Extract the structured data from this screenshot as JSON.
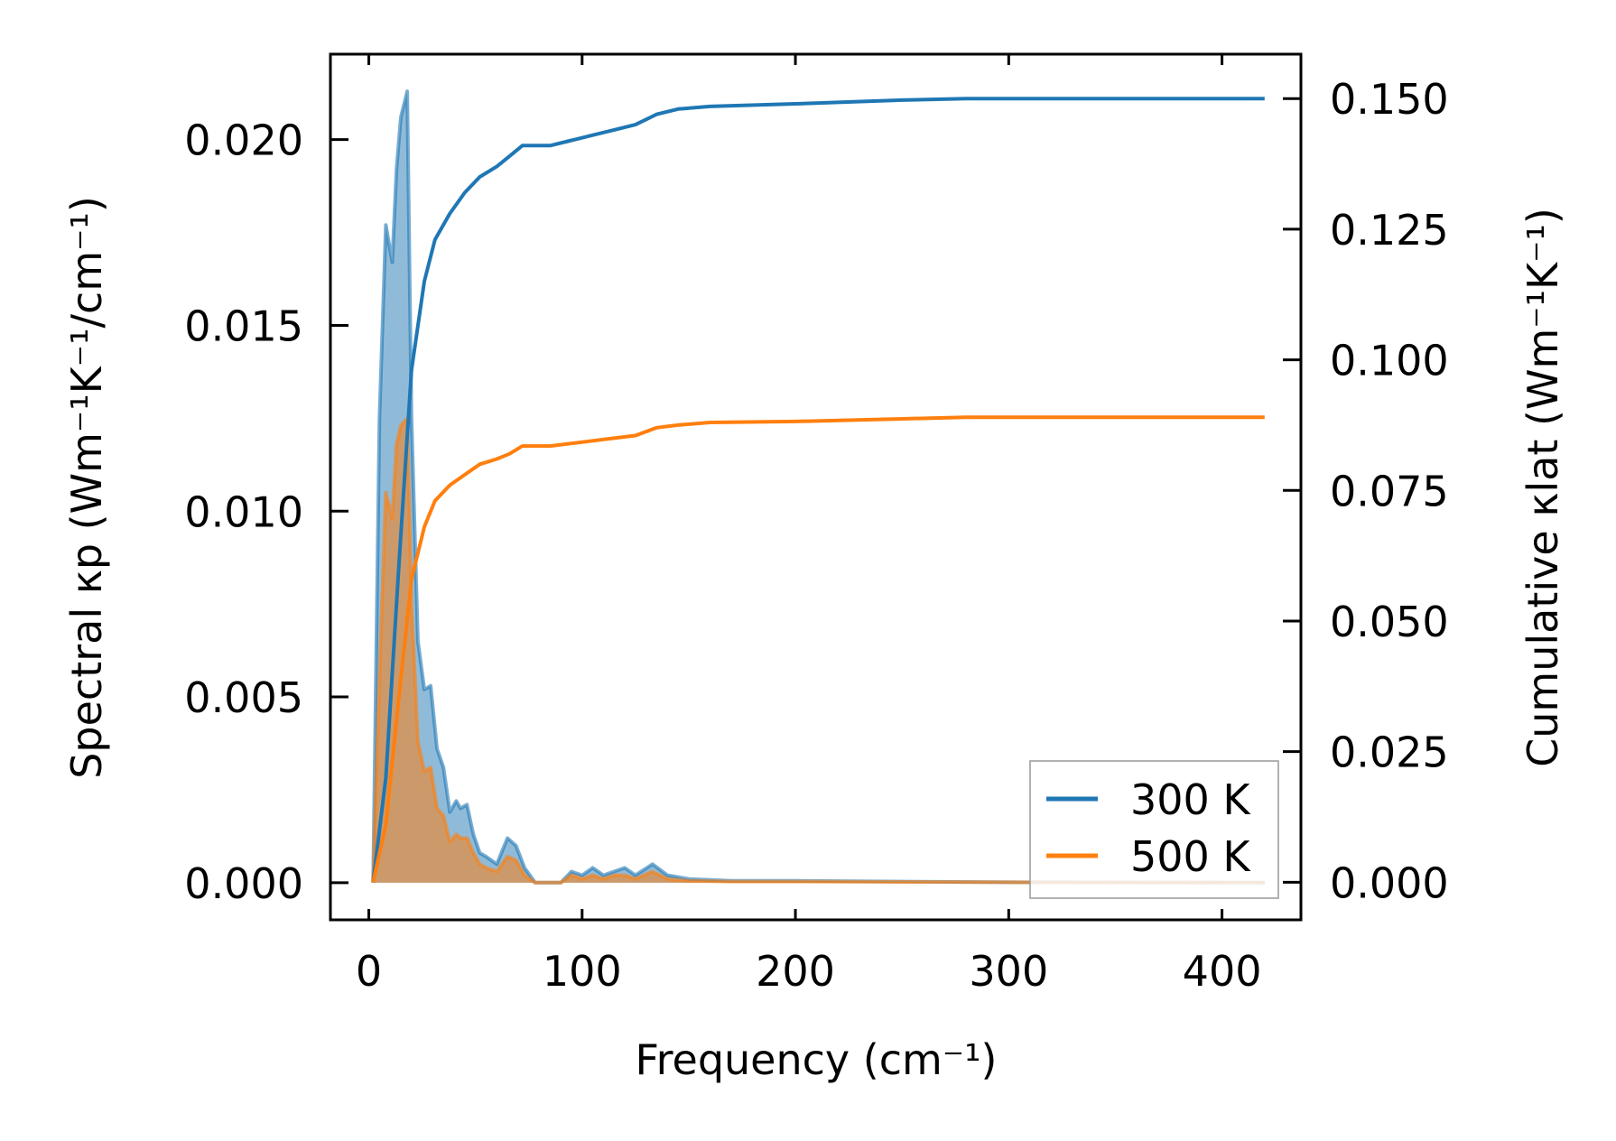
{
  "chart_data": {
    "type": "line",
    "xlabel": "Frequency (cm⁻¹)",
    "ylabel": "Spectral κp (Wm⁻¹K⁻¹/cm⁻¹)",
    "y2label": "Cumulative κlat (Wm⁻¹K⁻¹)",
    "xlim": [
      -18,
      437
    ],
    "ylim": [
      -0.001,
      0.0223
    ],
    "y2lim": [
      -0.0072,
      0.1585
    ],
    "xticks": [
      "0",
      "100",
      "200",
      "300",
      "400"
    ],
    "xtick_values": [
      0,
      100,
      200,
      300,
      400
    ],
    "yticks": [
      "0.000",
      "0.005",
      "0.010",
      "0.015",
      "0.020"
    ],
    "ytick_values": [
      0,
      0.005,
      0.01,
      0.015,
      0.02
    ],
    "y2ticks": [
      "0.000",
      "0.025",
      "0.050",
      "0.075",
      "0.100",
      "0.125",
      "0.150"
    ],
    "y2tick_values": [
      0,
      0.025,
      0.05,
      0.075,
      0.1,
      0.125,
      0.15
    ],
    "legend": {
      "placement": "lower-right",
      "entries": [
        "300 K",
        "500 K"
      ]
    },
    "colors": {
      "300 K": "#1f77b4",
      "500 K": "#ff7f0e"
    },
    "spectral": [
      {
        "name": "300 K",
        "x": [
          2,
          5,
          8,
          11,
          13,
          15,
          18,
          20,
          23,
          26,
          29,
          32,
          35,
          38,
          41,
          43,
          46,
          49,
          52,
          55,
          60,
          65,
          69,
          73,
          78,
          90,
          95,
          100,
          105,
          110,
          115,
          120,
          125,
          133,
          140,
          150,
          170,
          200,
          250,
          300,
          420
        ],
        "y": [
          0,
          0.0125,
          0.0177,
          0.0167,
          0.0192,
          0.0206,
          0.0213,
          0.0125,
          0.0065,
          0.0052,
          0.0053,
          0.0036,
          0.0031,
          0.0019,
          0.0022,
          0.002,
          0.0021,
          0.0013,
          0.0008,
          0.0007,
          0.0005,
          0.0012,
          0.001,
          0.0004,
          0,
          0,
          0.0003,
          0.0002,
          0.0004,
          0.0002,
          0.0003,
          0.0004,
          0.0002,
          0.0005,
          0.0002,
          0.0001,
          5e-05,
          5e-05,
          3e-05,
          1e-05,
          0
        ]
      },
      {
        "name": "500 K",
        "x": [
          2,
          5,
          8,
          11,
          13,
          15,
          18,
          20,
          23,
          26,
          29,
          32,
          35,
          38,
          41,
          43,
          46,
          49,
          52,
          55,
          60,
          65,
          69,
          73,
          78,
          90,
          95,
          100,
          105,
          110,
          115,
          120,
          125,
          133,
          140,
          150,
          170,
          200,
          250,
          300,
          420
        ],
        "y": [
          0,
          0.0055,
          0.0105,
          0.0098,
          0.0118,
          0.0123,
          0.0125,
          0.0075,
          0.0038,
          0.003,
          0.0031,
          0.002,
          0.0018,
          0.0011,
          0.0013,
          0.0012,
          0.0012,
          0.0008,
          0.0005,
          0.0004,
          0.0003,
          0.0007,
          0.0006,
          0.0002,
          0,
          0,
          0.0002,
          0.0001,
          0.0002,
          0.0001,
          0.0002,
          0.0002,
          0.0001,
          0.0003,
          0.0001,
          5e-05,
          3e-05,
          3e-05,
          2e-05,
          1e-05,
          0
        ]
      }
    ],
    "cumulative": [
      {
        "name": "300 K",
        "x": [
          2,
          8,
          14,
          20,
          26,
          31,
          38,
          45,
          52,
          60,
          66,
          72,
          85,
          95,
          105,
          115,
          125,
          135,
          145,
          160,
          200,
          250,
          280,
          350,
          420
        ],
        "y": [
          0,
          0.02,
          0.06,
          0.098,
          0.115,
          0.123,
          0.128,
          0.132,
          0.135,
          0.137,
          0.139,
          0.141,
          0.141,
          0.142,
          0.143,
          0.144,
          0.145,
          0.147,
          0.148,
          0.1485,
          0.149,
          0.1497,
          0.15,
          0.15,
          0.15
        ]
      },
      {
        "name": "500 K",
        "x": [
          2,
          8,
          14,
          20,
          26,
          31,
          38,
          45,
          52,
          60,
          66,
          72,
          85,
          95,
          105,
          115,
          125,
          135,
          145,
          160,
          200,
          250,
          280,
          350,
          420
        ],
        "y": [
          0,
          0.011,
          0.035,
          0.058,
          0.068,
          0.073,
          0.076,
          0.078,
          0.08,
          0.081,
          0.082,
          0.0835,
          0.0835,
          0.084,
          0.0845,
          0.085,
          0.0855,
          0.087,
          0.0875,
          0.088,
          0.0882,
          0.0887,
          0.089,
          0.089,
          0.089
        ]
      }
    ]
  }
}
